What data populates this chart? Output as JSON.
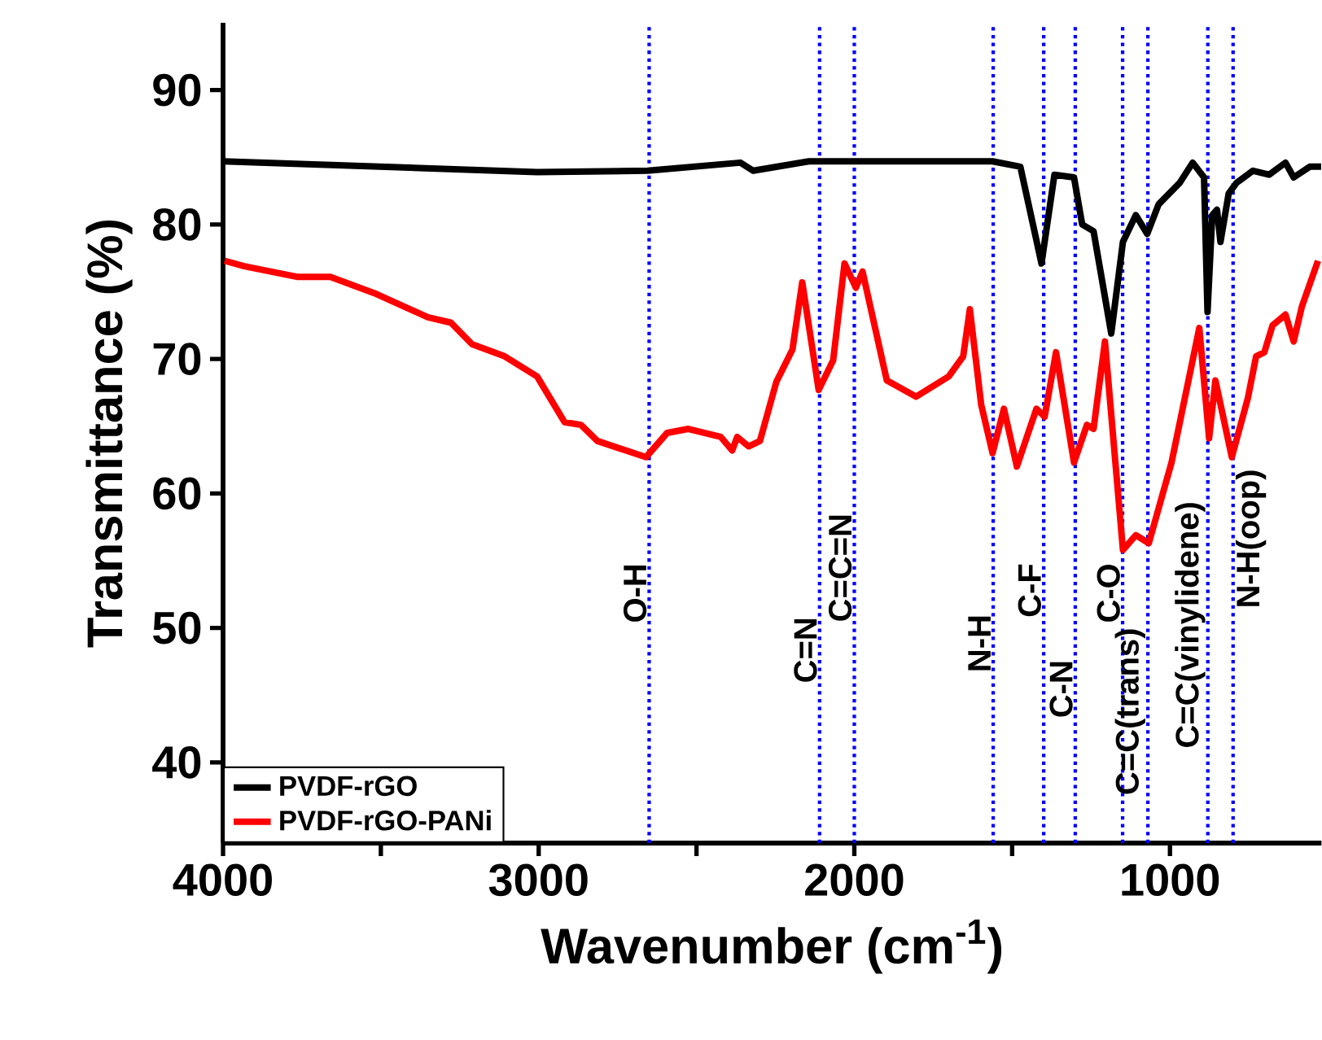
{
  "chart_data": {
    "type": "line",
    "xlabel": "Wavenumber (cm$^{-1}$)",
    "ylabel": "Transmittance (%)",
    "xlim": [
      4000,
      520
    ],
    "ylim": [
      34,
      95
    ],
    "xticks": [
      4000,
      {
        "value": 3500,
        "label": null
      },
      3000,
      {
        "value": 2500,
        "label": null
      },
      2000,
      {
        "value": 1500,
        "label": null
      },
      1000
    ],
    "yticks": [
      40,
      50,
      60,
      70,
      80,
      90
    ],
    "legend": "bottom left",
    "series": [
      {
        "name": "PVDF-rGO",
        "color": "#000000",
        "x": [
          4000,
          3005,
          2655,
          2361,
          2320,
          2144,
          1562,
          1474,
          1407,
          1366,
          1304,
          1278,
          1242,
          1186,
          1149,
          1108,
          1072,
          1036,
          969,
          928,
          892,
          881,
          866,
          851,
          840,
          814,
          789,
          737,
          686,
          634,
          608,
          557,
          521
        ],
        "values": [
          84.7,
          83.9,
          84.0,
          84.6,
          84.0,
          84.7,
          84.7,
          84.3,
          77.1,
          83.7,
          83.5,
          80.0,
          79.5,
          71.9,
          78.7,
          80.7,
          79.3,
          81.5,
          83.1,
          84.6,
          83.5,
          73.5,
          80.7,
          81.1,
          78.7,
          82.3,
          83.1,
          84.0,
          83.7,
          84.6,
          83.5,
          84.3,
          84.3
        ]
      },
      {
        "name": "PVDF-rGO-PANi",
        "color": "#ff0000",
        "x": [
          3995,
          3933,
          3763,
          3660,
          3521,
          3351,
          3278,
          3211,
          3108,
          3005,
          2918,
          2866,
          2814,
          2660,
          2593,
          2526,
          2423,
          2387,
          2371,
          2335,
          2299,
          2247,
          2196,
          2165,
          2113,
          2067,
          2031,
          1995,
          1974,
          1897,
          1804,
          1701,
          1655,
          1634,
          1598,
          1562,
          1526,
          1485,
          1423,
          1397,
          1361,
          1304,
          1263,
          1242,
          1206,
          1149,
          1108,
          1067,
          995,
          907,
          876,
          856,
          804,
          753,
          727,
          701,
          675,
          634,
          608,
          582,
          531
        ],
        "values": [
          77.3,
          76.9,
          76.1,
          76.1,
          74.9,
          73.1,
          72.7,
          71.1,
          70.2,
          68.7,
          65.3,
          65.1,
          63.9,
          62.7,
          64.5,
          64.8,
          64.2,
          63.2,
          64.2,
          63.5,
          63.9,
          68.3,
          70.7,
          75.7,
          67.7,
          69.9,
          77.1,
          75.3,
          76.5,
          68.4,
          67.2,
          68.7,
          70.2,
          73.7,
          66.6,
          63.0,
          66.3,
          62.0,
          66.3,
          65.7,
          70.5,
          62.3,
          65.1,
          64.8,
          71.3,
          55.8,
          56.9,
          56.3,
          62.3,
          72.3,
          64.1,
          68.4,
          62.7,
          67.1,
          70.2,
          70.5,
          72.5,
          73.3,
          71.3,
          73.9,
          77.3
        ]
      }
    ],
    "ref_lines": [
      {
        "axis": "x",
        "value": 2650,
        "label": "O-H",
        "color": "#0000ff",
        "line_style": "dotted"
      },
      {
        "axis": "x",
        "value": 2110,
        "label": "C=N",
        "color": "#0000ff",
        "line_style": "dotted"
      },
      {
        "axis": "x",
        "value": 2000,
        "label": "C=C=N",
        "color": "#0000ff",
        "line_style": "dotted"
      },
      {
        "axis": "x",
        "value": 1560,
        "label": "N-H",
        "color": "#0000ff",
        "line_style": "dotted"
      },
      {
        "axis": "x",
        "value": 1400,
        "label": "C-F",
        "color": "#0000ff",
        "line_style": "dotted"
      },
      {
        "axis": "x",
        "value": 1300,
        "label": "C-N",
        "color": "#0000ff",
        "line_style": "dotted"
      },
      {
        "axis": "x",
        "value": 1150,
        "label": "C-O",
        "color": "#0000ff",
        "line_style": "dotted"
      },
      {
        "axis": "x",
        "value": 1070,
        "label": "C=C(trans)",
        "color": "#0000ff",
        "line_style": "dotted"
      },
      {
        "axis": "x",
        "value": 880,
        "label": "C=C(vinylidene)",
        "color": "#0000ff",
        "line_style": "dotted"
      },
      {
        "axis": "x",
        "value": 800,
        "label": "N-H(oop)",
        "color": "#0000ff",
        "line_style": "dotted"
      }
    ]
  }
}
